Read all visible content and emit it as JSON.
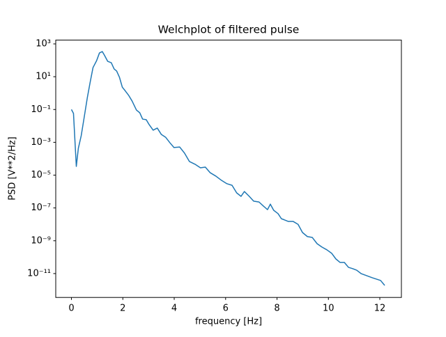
{
  "chart_data": {
    "type": "line",
    "title": "Welchplot of filtered pulse",
    "xlabel": "frequency [Hz]",
    "ylabel": "PSD [V**2/Hz]",
    "yscale": "log",
    "grid": false,
    "xlim": [
      -0.61,
      12.84
    ],
    "ylim": [
      3.5e-13,
      1700
    ],
    "xticks": [
      0,
      2,
      4,
      6,
      8,
      10,
      12
    ],
    "yticks": [
      {
        "value": 1000,
        "label": "10³"
      },
      {
        "value": 10,
        "label": "10¹"
      },
      {
        "value": 0.1,
        "label": "10⁻¹"
      },
      {
        "value": 0.001,
        "label": "10⁻³"
      },
      {
        "value": 1e-05,
        "label": "10⁻⁵"
      },
      {
        "value": 1e-07,
        "label": "10⁻⁷"
      },
      {
        "value": 1e-09,
        "label": "10⁻⁹"
      },
      {
        "value": 1e-11,
        "label": "10⁻¹¹"
      }
    ],
    "series": [
      {
        "color": "#1f77b4",
        "x": [
          0,
          0.08,
          0.19,
          0.27,
          0.38,
          0.49,
          0.62,
          0.73,
          0.84,
          0.98,
          1.09,
          1.2,
          1.28,
          1.41,
          1.55,
          1.66,
          1.76,
          1.87,
          1.98,
          2.09,
          2.23,
          2.36,
          2.53,
          2.66,
          2.77,
          2.91,
          3.01,
          3.18,
          3.34,
          3.5,
          3.67,
          3.83,
          3.99,
          4.21,
          4.4,
          4.59,
          4.81,
          5.02,
          5.21,
          5.4,
          5.62,
          5.84,
          6.05,
          6.25,
          6.43,
          6.6,
          6.73,
          6.92,
          7.09,
          7.3,
          7.47,
          7.63,
          7.74,
          7.87,
          8.04,
          8.17,
          8.28,
          8.44,
          8.63,
          8.82,
          8.99,
          9.18,
          9.37,
          9.56,
          9.75,
          9.94,
          10.13,
          10.29,
          10.45,
          10.62,
          10.78,
          10.94,
          11.1,
          11.27,
          11.49,
          11.7,
          12.03,
          12.19
        ],
        "values": [
          0.1,
          0.058,
          3.4e-05,
          0.00044,
          0.0025,
          0.029,
          0.54,
          4.7,
          36,
          95,
          280,
          340,
          210,
          87,
          71,
          30,
          22,
          9.1,
          2.3,
          1.4,
          0.72,
          0.33,
          0.093,
          0.063,
          0.026,
          0.024,
          0.013,
          0.0055,
          0.0074,
          0.003,
          0.002,
          0.00095,
          0.00048,
          0.00052,
          0.00022,
          6.8e-05,
          4.6e-05,
          2.8e-05,
          3.1e-05,
          1.4e-05,
          8.7e-06,
          4.8e-06,
          3e-06,
          2.4e-06,
          8.3e-07,
          5.1e-07,
          1e-06,
          5.1e-07,
          2.6e-07,
          2.3e-07,
          1.3e-07,
          7.9e-08,
          1.7e-07,
          7.2e-08,
          4.5e-08,
          2.2e-08,
          1.9e-08,
          1.5e-08,
          1.5e-08,
          1e-08,
          3.2e-09,
          1.8e-09,
          1.6e-09,
          6.6e-10,
          4.1e-10,
          2.8e-10,
          1.7e-10,
          7.8e-11,
          4.8e-11,
          4.8e-11,
          2.4e-11,
          2e-11,
          1.6e-11,
          1e-11,
          7.4e-12,
          5.6e-12,
          3.8e-12,
          1.9e-12
        ]
      }
    ]
  }
}
